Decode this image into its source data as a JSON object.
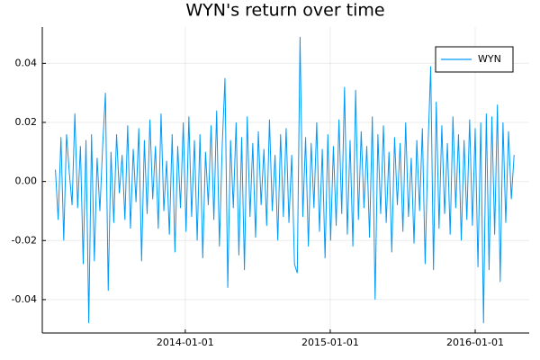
{
  "chart_data": {
    "type": "line",
    "title": "WYN's return over time",
    "x": [
      "2013-02-08",
      "2013-02-15",
      "2013-02-22",
      "2013-03-01",
      "2013-03-08",
      "2013-03-15",
      "2013-03-22",
      "2013-03-29",
      "2013-04-05",
      "2013-04-12",
      "2013-04-19",
      "2013-04-26",
      "2013-05-03",
      "2013-05-10",
      "2013-05-17",
      "2013-05-24",
      "2013-05-31",
      "2013-06-07",
      "2013-06-14",
      "2013-06-21",
      "2013-06-28",
      "2013-07-05",
      "2013-07-12",
      "2013-07-19",
      "2013-07-26",
      "2013-08-02",
      "2013-08-09",
      "2013-08-16",
      "2013-08-23",
      "2013-08-30",
      "2013-09-06",
      "2013-09-13",
      "2013-09-20",
      "2013-09-27",
      "2013-10-04",
      "2013-10-11",
      "2013-10-18",
      "2013-10-25",
      "2013-11-01",
      "2013-11-08",
      "2013-11-15",
      "2013-11-22",
      "2013-11-29",
      "2013-12-06",
      "2013-12-13",
      "2013-12-20",
      "2013-12-27",
      "2014-01-03",
      "2014-01-10",
      "2014-01-17",
      "2014-01-24",
      "2014-01-31",
      "2014-02-07",
      "2014-02-14",
      "2014-02-21",
      "2014-02-28",
      "2014-03-07",
      "2014-03-14",
      "2014-03-21",
      "2014-03-28",
      "2014-04-04",
      "2014-04-11",
      "2014-04-18",
      "2014-04-25",
      "2014-05-02",
      "2014-05-09",
      "2014-05-16",
      "2014-05-23",
      "2014-05-30",
      "2014-06-06",
      "2014-06-13",
      "2014-06-20",
      "2014-06-27",
      "2014-07-04",
      "2014-07-11",
      "2014-07-18",
      "2014-07-25",
      "2014-08-01",
      "2014-08-08",
      "2014-08-15",
      "2014-08-22",
      "2014-08-29",
      "2014-09-05",
      "2014-09-12",
      "2014-09-19",
      "2014-09-26",
      "2014-10-03",
      "2014-10-10",
      "2014-10-17",
      "2014-10-24",
      "2014-10-31",
      "2014-11-07",
      "2014-11-14",
      "2014-11-21",
      "2014-11-28",
      "2014-12-05",
      "2014-12-12",
      "2014-12-19",
      "2014-12-26",
      "2015-01-02",
      "2015-01-09",
      "2015-01-16",
      "2015-01-23",
      "2015-01-30",
      "2015-02-06",
      "2015-02-13",
      "2015-02-20",
      "2015-02-27",
      "2015-03-06",
      "2015-03-13",
      "2015-03-20",
      "2015-03-27",
      "2015-04-03",
      "2015-04-10",
      "2015-04-17",
      "2015-04-24",
      "2015-05-01",
      "2015-05-08",
      "2015-05-15",
      "2015-05-22",
      "2015-05-29",
      "2015-06-05",
      "2015-06-12",
      "2015-06-19",
      "2015-06-26",
      "2015-07-03",
      "2015-07-10",
      "2015-07-17",
      "2015-07-24",
      "2015-07-31",
      "2015-08-07",
      "2015-08-14",
      "2015-08-21",
      "2015-08-28",
      "2015-09-04",
      "2015-09-11",
      "2015-09-18",
      "2015-09-25",
      "2015-10-02",
      "2015-10-09",
      "2015-10-16",
      "2015-10-23",
      "2015-10-30",
      "2015-11-06",
      "2015-11-13",
      "2015-11-20",
      "2015-11-27",
      "2015-12-04",
      "2015-12-11",
      "2015-12-18",
      "2015-12-25",
      "2016-01-01",
      "2016-01-08",
      "2016-01-15",
      "2016-01-22",
      "2016-01-29",
      "2016-02-05",
      "2016-02-12",
      "2016-02-19",
      "2016-02-26",
      "2016-03-04",
      "2016-03-11",
      "2016-03-18",
      "2016-03-25",
      "2016-04-01",
      "2016-04-08"
    ],
    "series": [
      {
        "name": "WYN",
        "color": "#009af9",
        "values": [
          0.004,
          -0.013,
          0.015,
          -0.02,
          0.016,
          0.003,
          -0.008,
          0.023,
          -0.009,
          0.012,
          -0.028,
          0.014,
          -0.048,
          0.016,
          -0.027,
          0.008,
          -0.01,
          0.012,
          0.03,
          -0.037,
          0.01,
          -0.014,
          0.016,
          -0.004,
          0.009,
          -0.013,
          0.019,
          -0.016,
          0.011,
          -0.007,
          0.018,
          -0.027,
          0.014,
          -0.011,
          0.021,
          -0.006,
          0.012,
          -0.016,
          0.023,
          -0.01,
          0.007,
          -0.018,
          0.016,
          -0.024,
          0.012,
          -0.009,
          0.02,
          -0.017,
          0.022,
          -0.012,
          0.014,
          -0.02,
          0.016,
          -0.026,
          0.01,
          -0.008,
          0.019,
          -0.013,
          0.024,
          -0.022,
          0.012,
          0.035,
          -0.036,
          0.014,
          -0.009,
          0.02,
          -0.025,
          0.015,
          -0.03,
          0.022,
          -0.012,
          0.013,
          -0.019,
          0.017,
          -0.008,
          0.011,
          -0.015,
          0.021,
          -0.01,
          0.009,
          -0.02,
          0.016,
          -0.012,
          0.018,
          -0.014,
          0.009,
          -0.028,
          -0.031,
          0.049,
          -0.012,
          0.015,
          -0.022,
          0.013,
          -0.009,
          0.02,
          -0.017,
          0.011,
          -0.026,
          0.016,
          -0.02,
          0.012,
          -0.015,
          0.021,
          -0.011,
          0.032,
          -0.018,
          0.014,
          -0.022,
          0.031,
          -0.013,
          0.017,
          -0.009,
          0.012,
          -0.019,
          0.022,
          -0.04,
          0.016,
          -0.011,
          0.019,
          -0.014,
          0.01,
          -0.024,
          0.015,
          -0.008,
          0.013,
          -0.017,
          0.02,
          -0.012,
          0.008,
          -0.021,
          0.014,
          -0.01,
          0.018,
          -0.028,
          0.011,
          0.039,
          -0.03,
          0.027,
          -0.016,
          0.019,
          -0.011,
          0.013,
          -0.018,
          0.022,
          -0.009,
          0.016,
          -0.02,
          0.014,
          -0.013,
          0.021,
          -0.015,
          0.018,
          -0.029,
          0.02,
          -0.048,
          0.023,
          -0.03,
          0.022,
          -0.018,
          0.026,
          -0.034,
          0.02,
          -0.014,
          0.017,
          -0.006,
          0.009
        ]
      }
    ],
    "xlim": [
      "2013-01-06",
      "2016-05-16"
    ],
    "xticks": [
      "2014-01-01",
      "2015-01-01",
      "2016-01-01"
    ],
    "ylim": [
      -0.0513,
      0.0523
    ],
    "yticks": [
      -0.04,
      -0.02,
      {
        "value": 0,
        "label": "0.00"
      },
      0.02,
      0.04
    ],
    "grid": true,
    "legend": "top-right"
  }
}
